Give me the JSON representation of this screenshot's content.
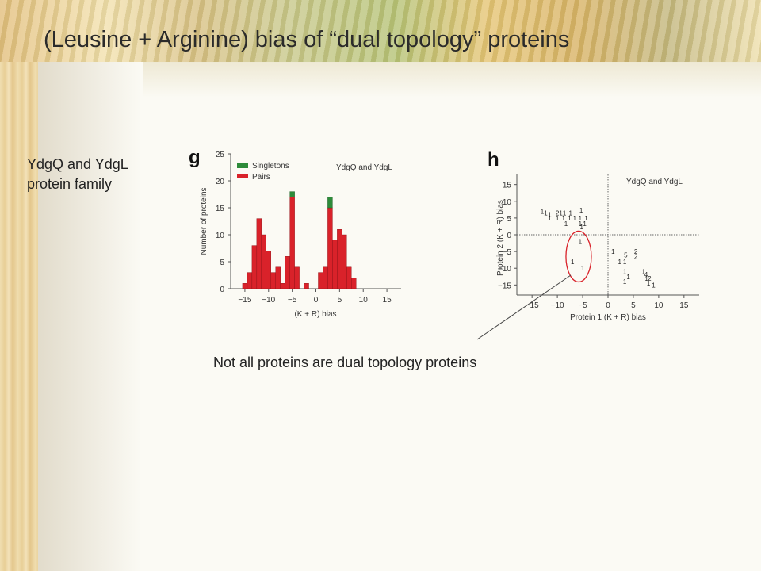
{
  "slide": {
    "title": "(Leusine + Arginine) bias of “dual topology” proteins",
    "side_label_line1": "YdgQ and YdgL",
    "side_label_line2": "protein family",
    "caption": "Not all proteins are dual topology proteins"
  },
  "chart_data": [
    {
      "type": "bar",
      "panel_label": "g",
      "title": "YdgQ and YdgL",
      "xlabel": "(K + R) bias",
      "ylabel": "Number of proteins",
      "xlim": [
        -18,
        18
      ],
      "ylim": [
        0,
        25
      ],
      "xticks": [
        -15,
        -10,
        -5,
        0,
        5,
        10,
        15
      ],
      "yticks": [
        0,
        5,
        10,
        15,
        20,
        25
      ],
      "legend": "top-left",
      "colors": {
        "Singletons": "#2e8b3a",
        "Pairs": "#d9222a"
      },
      "x": [
        -15,
        -14,
        -13,
        -12,
        -11,
        -10,
        -9,
        -8,
        -7,
        -6,
        -5,
        -4,
        -2,
        1,
        2,
        3,
        4,
        5,
        6,
        7,
        8
      ],
      "series": [
        {
          "name": "Singletons",
          "values": [
            0,
            0,
            0,
            0,
            0,
            0,
            0,
            0,
            0,
            0,
            1,
            0,
            0,
            0,
            0,
            2,
            0,
            0,
            0,
            0,
            0
          ]
        },
        {
          "name": "Pairs",
          "values": [
            1,
            3,
            8,
            13,
            10,
            7,
            3,
            4,
            1,
            6,
            17,
            4,
            1,
            3,
            4,
            15,
            9,
            11,
            10,
            4,
            2
          ]
        }
      ]
    },
    {
      "type": "scatter",
      "panel_label": "h",
      "title": "YdgQ and YdgL",
      "xlabel": "Protein 1 (K + R) bias",
      "ylabel": "Protein 2 (K + R) bias",
      "xlim": [
        -18,
        18
      ],
      "ylim": [
        -18,
        18
      ],
      "xticks": [
        -15,
        -10,
        -5,
        0,
        5,
        10,
        15
      ],
      "yticks": [
        15,
        10,
        5,
        0,
        -5,
        -10,
        -15
      ],
      "annotation": "circled points",
      "points": [
        {
          "x": -13,
          "y": 7,
          "n": "1"
        },
        {
          "x": -12.3,
          "y": 6.5,
          "n": "1"
        },
        {
          "x": -11.5,
          "y": 6,
          "n": "1"
        },
        {
          "x": -11.5,
          "y": 5,
          "n": "1"
        },
        {
          "x": -10,
          "y": 6.5,
          "n": "2"
        },
        {
          "x": -9.3,
          "y": 6.5,
          "n": "1"
        },
        {
          "x": -8.6,
          "y": 6.5,
          "n": "1"
        },
        {
          "x": -7.4,
          "y": 6.5,
          "n": "1"
        },
        {
          "x": -10,
          "y": 5,
          "n": "1"
        },
        {
          "x": -8.8,
          "y": 5,
          "n": "1"
        },
        {
          "x": -7.6,
          "y": 5,
          "n": "1"
        },
        {
          "x": -6.6,
          "y": 5,
          "n": "1"
        },
        {
          "x": -5.5,
          "y": 5,
          "n": "1"
        },
        {
          "x": -4.3,
          "y": 5,
          "n": "1"
        },
        {
          "x": -8.3,
          "y": 3.3,
          "n": "1"
        },
        {
          "x": -5.5,
          "y": 3.3,
          "n": "1"
        },
        {
          "x": -4.6,
          "y": 3.3,
          "n": "1"
        },
        {
          "x": -5.3,
          "y": 7.3,
          "n": "1"
        },
        {
          "x": -5.2,
          "y": 2.4,
          "n": "1"
        },
        {
          "x": -5.5,
          "y": -2,
          "n": "1"
        },
        {
          "x": -7,
          "y": -8,
          "n": "1"
        },
        {
          "x": -5,
          "y": -10,
          "n": "1"
        },
        {
          "x": 1,
          "y": -5,
          "n": "1"
        },
        {
          "x": 3.5,
          "y": -6,
          "n": "5"
        },
        {
          "x": 5.5,
          "y": -5,
          "n": "2"
        },
        {
          "x": 5.5,
          "y": -6.5,
          "n": "2"
        },
        {
          "x": 2.3,
          "y": -8,
          "n": "1"
        },
        {
          "x": 3.3,
          "y": -8,
          "n": "1"
        },
        {
          "x": 3.3,
          "y": -11,
          "n": "1"
        },
        {
          "x": 4,
          "y": -12.5,
          "n": "1"
        },
        {
          "x": 7,
          "y": -11,
          "n": "1"
        },
        {
          "x": 7.5,
          "y": -11.8,
          "n": "4"
        },
        {
          "x": 7.6,
          "y": -13,
          "n": "1"
        },
        {
          "x": 8.2,
          "y": -13,
          "n": "2"
        },
        {
          "x": 3.3,
          "y": -14,
          "n": "1"
        },
        {
          "x": 8,
          "y": -14.5,
          "n": "1"
        },
        {
          "x": 9,
          "y": -15,
          "n": "1"
        }
      ]
    }
  ]
}
